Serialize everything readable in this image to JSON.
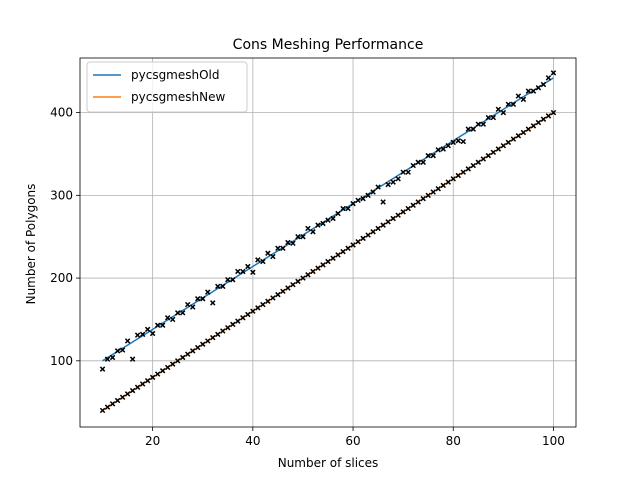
{
  "chart_data": {
    "type": "line",
    "title": "Cons Meshing Performance",
    "xlabel": "Number of slices",
    "ylabel": "Number of Polygons",
    "xlim": [
      5.5,
      104.5
    ],
    "ylim": [
      20,
      466
    ],
    "xticks": [
      20,
      40,
      60,
      80,
      100
    ],
    "yticks": [
      100,
      200,
      300,
      400
    ],
    "grid": true,
    "legend_position": "top-left",
    "scatter_marker": "x",
    "scatter_color": "#000000",
    "series": [
      {
        "name": "pycsgmeshOld",
        "color": "#1f77b4",
        "fit": {
          "slope": 3.8,
          "intercept": 62
        }
      },
      {
        "name": "pycsgmeshNew",
        "color": "#ff7f0e",
        "fit": {
          "slope": 4.0,
          "intercept": 0
        }
      }
    ],
    "scatter_old": {
      "x": [
        10,
        11,
        12,
        13,
        14,
        15,
        16,
        17,
        18,
        19,
        20,
        21,
        22,
        23,
        24,
        25,
        26,
        27,
        28,
        29,
        30,
        31,
        32,
        33,
        34,
        35,
        36,
        37,
        38,
        39,
        40,
        41,
        42,
        43,
        44,
        45,
        46,
        47,
        48,
        49,
        50,
        51,
        52,
        53,
        54,
        55,
        56,
        57,
        58,
        59,
        60,
        61,
        62,
        63,
        64,
        65,
        66,
        67,
        68,
        69,
        70,
        71,
        72,
        73,
        74,
        75,
        76,
        77,
        78,
        79,
        80,
        81,
        82,
        83,
        84,
        85,
        86,
        87,
        88,
        89,
        90,
        91,
        92,
        93,
        94,
        95,
        96,
        97,
        98,
        99,
        100
      ],
      "y": [
        90,
        102,
        104,
        112,
        113,
        124,
        102,
        131,
        132,
        138,
        133,
        143,
        143,
        152,
        150,
        158,
        158,
        168,
        165,
        175,
        175,
        183,
        170,
        190,
        190,
        198,
        198,
        208,
        208,
        214,
        207,
        222,
        220,
        230,
        226,
        236,
        236,
        243,
        242,
        250,
        250,
        260,
        256,
        264,
        266,
        270,
        272,
        278,
        284,
        284,
        290,
        294,
        296,
        300,
        304,
        310,
        292,
        313,
        316,
        320,
        328,
        328,
        336,
        340,
        340,
        348,
        348,
        355,
        356,
        360,
        364,
        366,
        365,
        380,
        380,
        386,
        386,
        394,
        394,
        404,
        400,
        410,
        410,
        420,
        416,
        426,
        426,
        430,
        434,
        442,
        448
      ]
    },
    "scatter_new": {
      "x": [
        10,
        11,
        12,
        13,
        14,
        15,
        16,
        17,
        18,
        19,
        20,
        21,
        22,
        23,
        24,
        25,
        26,
        27,
        28,
        29,
        30,
        31,
        32,
        33,
        34,
        35,
        36,
        37,
        38,
        39,
        40,
        41,
        42,
        43,
        44,
        45,
        46,
        47,
        48,
        49,
        50,
        51,
        52,
        53,
        54,
        55,
        56,
        57,
        58,
        59,
        60,
        61,
        62,
        63,
        64,
        65,
        66,
        67,
        68,
        69,
        70,
        71,
        72,
        73,
        74,
        75,
        76,
        77,
        78,
        79,
        80,
        81,
        82,
        83,
        84,
        85,
        86,
        87,
        88,
        89,
        90,
        91,
        92,
        93,
        94,
        95,
        96,
        97,
        98,
        99,
        100
      ],
      "y": [
        40,
        44,
        48,
        52,
        56,
        60,
        64,
        68,
        72,
        76,
        80,
        84,
        88,
        92,
        96,
        100,
        104,
        108,
        112,
        116,
        120,
        124,
        128,
        132,
        136,
        140,
        144,
        148,
        152,
        156,
        160,
        164,
        168,
        172,
        176,
        180,
        184,
        188,
        192,
        196,
        200,
        204,
        208,
        212,
        216,
        220,
        224,
        228,
        232,
        236,
        240,
        244,
        248,
        252,
        256,
        260,
        264,
        268,
        272,
        276,
        280,
        284,
        288,
        292,
        296,
        300,
        304,
        308,
        312,
        316,
        320,
        324,
        328,
        332,
        336,
        340,
        344,
        348,
        352,
        356,
        360,
        364,
        368,
        372,
        376,
        380,
        384,
        388,
        392,
        396,
        400
      ]
    }
  }
}
